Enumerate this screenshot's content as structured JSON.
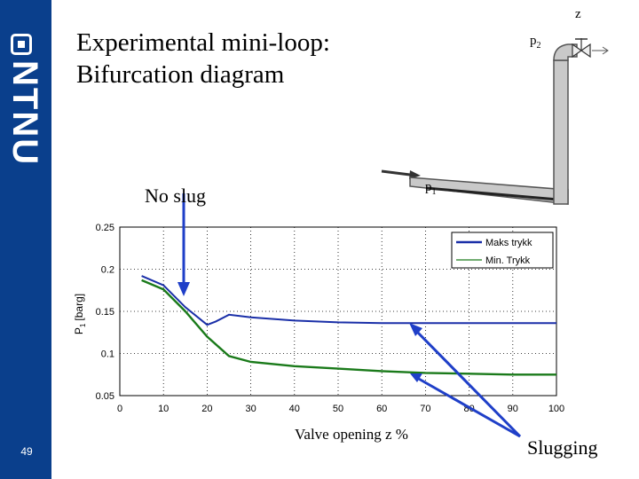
{
  "brand": {
    "logo_text": "NTNU",
    "slide_number": "49",
    "color": "#0a3f8c"
  },
  "title": {
    "line1": "Experimental mini-loop:",
    "line2": "Bifurcation diagram"
  },
  "annotations": {
    "no_slug": "No slug",
    "slugging": "Slugging",
    "arrow_color": "#1f3fc8"
  },
  "schematic": {
    "p1": {
      "base": "p",
      "sub": "1"
    },
    "p2": {
      "base": "p",
      "sub": "2"
    },
    "valve_label": "z"
  },
  "chart_data": {
    "type": "line",
    "xlabel": "Valve opening z %",
    "ylabel": "P1 [barg]",
    "ylabel_base": "P",
    "ylabel_sub": "1",
    "ylabel_unit": "[barg]",
    "xlim": [
      0,
      100
    ],
    "ylim": [
      0.05,
      0.25
    ],
    "xticks": [
      0,
      10,
      20,
      30,
      40,
      50,
      60,
      70,
      80,
      90,
      100
    ],
    "yticks": [
      0.05,
      0.1,
      0.15,
      0.2,
      0.25
    ],
    "ytick_labels": [
      "0.05",
      "0.1",
      "0.15",
      "0.2",
      "0.25"
    ],
    "grid": true,
    "legend_position": "top-right",
    "series": [
      {
        "name": "Maks trykk",
        "color": "#1a2fa8",
        "x": [
          5,
          10,
          15,
          20,
          22,
          25,
          30,
          40,
          50,
          60,
          70,
          80,
          90,
          100
        ],
        "y": [
          0.192,
          0.181,
          0.155,
          0.134,
          0.138,
          0.146,
          0.143,
          0.139,
          0.137,
          0.136,
          0.136,
          0.136,
          0.136,
          0.136
        ]
      },
      {
        "name": "Min. Trykk",
        "color": "#1a7a1a",
        "x": [
          5,
          10,
          15,
          20,
          25,
          30,
          40,
          50,
          60,
          70,
          80,
          90,
          100
        ],
        "y": [
          0.187,
          0.176,
          0.15,
          0.12,
          0.097,
          0.09,
          0.085,
          0.082,
          0.079,
          0.077,
          0.076,
          0.075,
          0.075
        ]
      }
    ]
  }
}
